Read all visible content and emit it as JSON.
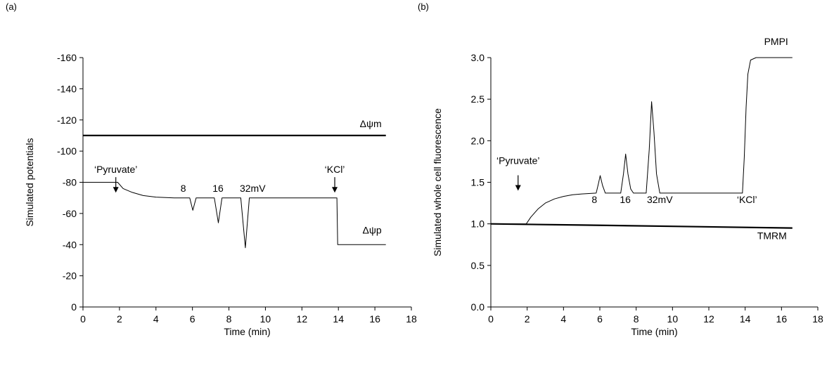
{
  "chart_data": [
    {
      "type": "line",
      "panel_label": "(a)",
      "xlabel": "Time (min)",
      "ylabel": "Simulated potentials",
      "xlim": [
        0,
        18
      ],
      "ylim": [
        0,
        -160
      ],
      "y_inverted": true,
      "x_ticks": [
        0,
        2,
        4,
        6,
        8,
        10,
        12,
        14,
        16,
        18
      ],
      "y_ticks": [
        0,
        -20,
        -40,
        -60,
        -80,
        -100,
        -120,
        -140,
        -160
      ],
      "grid": false,
      "series": [
        {
          "name": "Δψm",
          "color": "#000000",
          "width": 2.2,
          "points": [
            [
              0,
              -110
            ],
            [
              16.6,
              -110
            ]
          ]
        },
        {
          "name": "Δψp",
          "color": "#000000",
          "width": 1,
          "points": [
            [
              0,
              -80
            ],
            [
              1.9,
              -80
            ],
            [
              2.2,
              -76
            ],
            [
              2.7,
              -73.5
            ],
            [
              3.3,
              -71.5
            ],
            [
              4,
              -70.5
            ],
            [
              5,
              -70
            ],
            [
              5.85,
              -70
            ],
            [
              6.02,
              -62
            ],
            [
              6.2,
              -70
            ],
            [
              7.2,
              -70
            ],
            [
              7.42,
              -54
            ],
            [
              7.62,
              -70
            ],
            [
              8.65,
              -70
            ],
            [
              8.9,
              -38
            ],
            [
              9.12,
              -70
            ],
            [
              13.92,
              -70
            ],
            [
              13.96,
              -40
            ],
            [
              16.6,
              -40
            ]
          ]
        }
      ],
      "annotations": [
        {
          "text": "‘Pyruvate’",
          "x": 1.8,
          "y": -86,
          "arrow": true
        },
        {
          "text": "8",
          "x": 5.5,
          "y": -74
        },
        {
          "text": "16",
          "x": 7.4,
          "y": -74
        },
        {
          "text": "32mV",
          "x": 9.3,
          "y": -74
        },
        {
          "text": "‘KCl’",
          "x": 13.8,
          "y": -86,
          "arrow": true
        }
      ]
    },
    {
      "type": "line",
      "panel_label": "(b)",
      "xlabel": "Time (min)",
      "ylabel": "Simulated whole cell fluorescence",
      "xlim": [
        0,
        18
      ],
      "ylim": [
        0,
        3
      ],
      "x_ticks": [
        0,
        2,
        4,
        6,
        8,
        10,
        12,
        14,
        16,
        18
      ],
      "y_ticks": [
        0.0,
        0.5,
        1.0,
        1.5,
        2.0,
        2.5,
        3.0
      ],
      "grid": false,
      "series": [
        {
          "name": "PMPI",
          "color": "#000000",
          "width": 1,
          "points": [
            [
              0,
              1.0
            ],
            [
              1.95,
              1.0
            ],
            [
              2.2,
              1.08
            ],
            [
              2.6,
              1.18
            ],
            [
              3.0,
              1.25
            ],
            [
              3.5,
              1.3
            ],
            [
              4,
              1.33
            ],
            [
              4.5,
              1.35
            ],
            [
              5,
              1.36
            ],
            [
              5.8,
              1.37
            ],
            [
              5.92,
              1.48
            ],
            [
              6.02,
              1.58
            ],
            [
              6.15,
              1.46
            ],
            [
              6.3,
              1.37
            ],
            [
              7.15,
              1.37
            ],
            [
              7.3,
              1.6
            ],
            [
              7.42,
              1.84
            ],
            [
              7.55,
              1.6
            ],
            [
              7.7,
              1.42
            ],
            [
              7.85,
              1.37
            ],
            [
              8.55,
              1.37
            ],
            [
              8.72,
              1.9
            ],
            [
              8.85,
              2.47
            ],
            [
              8.98,
              2.1
            ],
            [
              9.12,
              1.6
            ],
            [
              9.3,
              1.37
            ],
            [
              13.85,
              1.37
            ],
            [
              13.95,
              1.8
            ],
            [
              14.05,
              2.4
            ],
            [
              14.15,
              2.8
            ],
            [
              14.3,
              2.97
            ],
            [
              14.6,
              3.0
            ],
            [
              16.6,
              3.0
            ]
          ]
        },
        {
          "name": "TMRM",
          "color": "#000000",
          "width": 2.2,
          "points": [
            [
              0,
              1.0
            ],
            [
              5,
              0.985
            ],
            [
              10,
              0.97
            ],
            [
              16.6,
              0.95
            ]
          ]
        }
      ],
      "annotations": [
        {
          "text": "‘Pyruvate’",
          "x": 1.5,
          "y": 1.72
        },
        {
          "text": "arrow",
          "x": 1.5,
          "y": 1.5,
          "arrow_only": true
        },
        {
          "text": "8",
          "x": 5.7,
          "y": 1.25
        },
        {
          "text": "16",
          "x": 7.4,
          "y": 1.25
        },
        {
          "text": "32mV",
          "x": 9.3,
          "y": 1.25
        },
        {
          "text": "‘KCl’",
          "x": 14.1,
          "y": 1.25
        }
      ]
    }
  ]
}
